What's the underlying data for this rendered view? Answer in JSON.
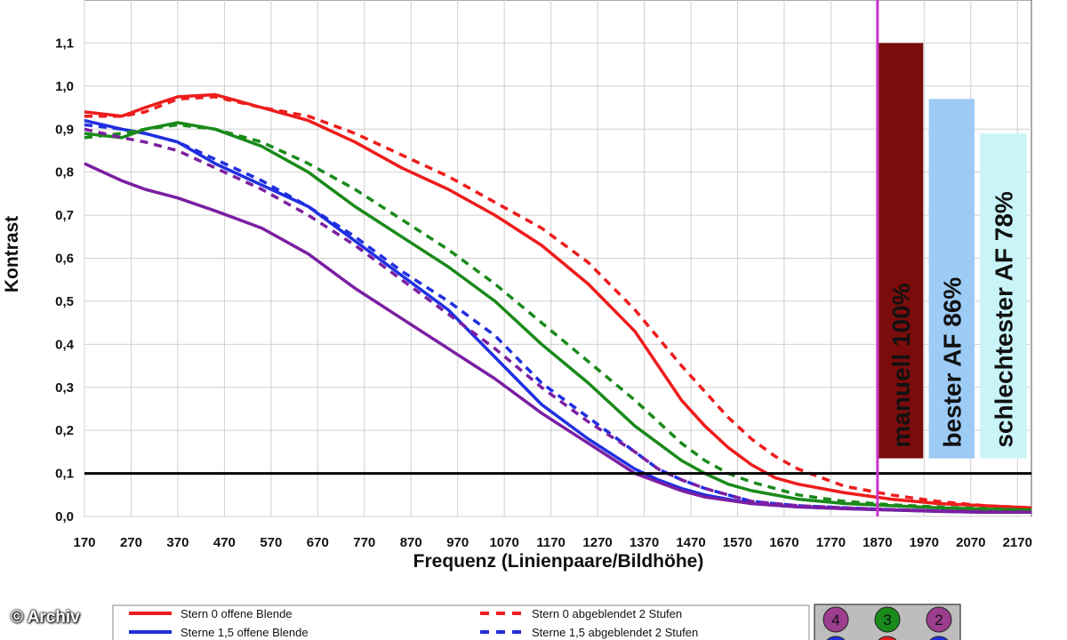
{
  "credit": "© Archiv",
  "chart_data": {
    "type": "line",
    "xlabel": "Frequenz (Linienpaare/Bildhöhe)",
    "ylabel": "Kontrast",
    "xlim": [
      170,
      2200
    ],
    "ylim": [
      0,
      1.2
    ],
    "x_ticks": [
      "170",
      "270",
      "370",
      "470",
      "570",
      "670",
      "770",
      "870",
      "970",
      "1070",
      "1170",
      "1270",
      "1370",
      "1470",
      "1570",
      "1670",
      "1770",
      "1870",
      "1970",
      "2070",
      "2170"
    ],
    "y_ticks": [
      "0,0",
      "0,1",
      "0,2",
      "0,3",
      "0,4",
      "0,5",
      "0,6",
      "0,7",
      "0,8",
      "0,9",
      "1,0",
      "1,1"
    ],
    "reference_line": {
      "y": 0.1,
      "color": "#000000"
    },
    "marker_line": {
      "x": 1870,
      "color": "#cc33cc"
    },
    "bars": [
      {
        "label": "manuell 100%",
        "value": 1.1,
        "color": "#7b0c0c"
      },
      {
        "label": "bester AF 86%",
        "value": 0.97,
        "color": "#9ccbf5"
      },
      {
        "label": "schlechtester AF 78%",
        "value": 0.89,
        "color": "#c9f5f8"
      }
    ],
    "series": [
      {
        "name": "Stern 0 offene Blende",
        "color": "#ee1c1c",
        "dash": false,
        "x": [
          170,
          250,
          300,
          370,
          450,
          550,
          650,
          750,
          850,
          950,
          1050,
          1150,
          1250,
          1350,
          1400,
          1450,
          1500,
          1550,
          1600,
          1650,
          1700,
          1800,
          1900,
          2000,
          2100,
          2200
        ],
        "y": [
          0.94,
          0.93,
          0.95,
          0.975,
          0.98,
          0.95,
          0.92,
          0.87,
          0.81,
          0.76,
          0.7,
          0.63,
          0.54,
          0.43,
          0.35,
          0.27,
          0.21,
          0.16,
          0.12,
          0.09,
          0.075,
          0.055,
          0.04,
          0.03,
          0.025,
          0.02
        ]
      },
      {
        "name": "Stern 0 abgeblendet 2 Stufen",
        "color": "#ee1c1c",
        "dash": true,
        "x": [
          170,
          250,
          300,
          370,
          450,
          550,
          650,
          750,
          850,
          950,
          1050,
          1150,
          1250,
          1350,
          1450,
          1500,
          1550,
          1600,
          1650,
          1700,
          1800,
          1900,
          2000,
          2100,
          2200
        ],
        "y": [
          0.93,
          0.93,
          0.94,
          0.97,
          0.975,
          0.95,
          0.93,
          0.89,
          0.84,
          0.79,
          0.73,
          0.67,
          0.59,
          0.48,
          0.35,
          0.29,
          0.23,
          0.18,
          0.14,
          0.11,
          0.07,
          0.05,
          0.035,
          0.025,
          0.02
        ]
      },
      {
        "name": "Sterne 1,5 offene Blende",
        "color": "#1f2fe0",
        "dash": false,
        "x": [
          170,
          250,
          300,
          370,
          450,
          550,
          650,
          750,
          850,
          950,
          1050,
          1150,
          1250,
          1350,
          1400,
          1450,
          1500,
          1600,
          1700,
          1800,
          1900,
          2000,
          2100,
          2200
        ],
        "y": [
          0.92,
          0.9,
          0.89,
          0.87,
          0.82,
          0.77,
          0.72,
          0.64,
          0.56,
          0.48,
          0.37,
          0.26,
          0.18,
          0.11,
          0.085,
          0.065,
          0.05,
          0.03,
          0.022,
          0.018,
          0.015,
          0.012,
          0.01,
          0.01
        ]
      },
      {
        "name": "Sterne 1,5 abgeblendet 2 Stufen",
        "color": "#1f2fe0",
        "dash": true,
        "x": [
          170,
          250,
          300,
          370,
          450,
          550,
          650,
          750,
          850,
          950,
          1050,
          1150,
          1250,
          1350,
          1400,
          1450,
          1500,
          1600,
          1700,
          1800,
          1900,
          2000,
          2100,
          2200
        ],
        "y": [
          0.91,
          0.9,
          0.89,
          0.87,
          0.83,
          0.78,
          0.72,
          0.65,
          0.57,
          0.5,
          0.42,
          0.31,
          0.23,
          0.15,
          0.11,
          0.085,
          0.065,
          0.035,
          0.025,
          0.02,
          0.016,
          0.013,
          0.011,
          0.01
        ]
      },
      {
        "name": "",
        "color": "#1a8a1a",
        "dash": false,
        "x": [
          170,
          250,
          300,
          370,
          450,
          550,
          650,
          750,
          850,
          950,
          1050,
          1150,
          1250,
          1350,
          1400,
          1450,
          1500,
          1550,
          1600,
          1700,
          1800,
          1900,
          2000,
          2100,
          2200
        ],
        "y": [
          0.89,
          0.88,
          0.9,
          0.915,
          0.9,
          0.86,
          0.8,
          0.72,
          0.65,
          0.58,
          0.5,
          0.4,
          0.31,
          0.21,
          0.17,
          0.13,
          0.1,
          0.075,
          0.06,
          0.04,
          0.03,
          0.025,
          0.02,
          0.017,
          0.015
        ]
      },
      {
        "name": "",
        "color": "#1a8a1a",
        "dash": true,
        "x": [
          170,
          250,
          300,
          370,
          450,
          550,
          650,
          750,
          850,
          950,
          1050,
          1150,
          1250,
          1350,
          1400,
          1450,
          1500,
          1550,
          1600,
          1700,
          1800,
          1900,
          2000,
          2100,
          2200
        ],
        "y": [
          0.88,
          0.89,
          0.9,
          0.91,
          0.9,
          0.87,
          0.82,
          0.76,
          0.69,
          0.62,
          0.54,
          0.45,
          0.36,
          0.27,
          0.22,
          0.17,
          0.13,
          0.1,
          0.08,
          0.05,
          0.035,
          0.027,
          0.022,
          0.018,
          0.015
        ]
      },
      {
        "name": "",
        "color": "#7b1fa2",
        "dash": false,
        "x": [
          170,
          250,
          300,
          370,
          450,
          550,
          650,
          750,
          850,
          950,
          1050,
          1150,
          1250,
          1350,
          1400,
          1450,
          1500,
          1600,
          1700,
          1800,
          1900,
          2000,
          2100,
          2200
        ],
        "y": [
          0.82,
          0.78,
          0.76,
          0.74,
          0.71,
          0.67,
          0.61,
          0.53,
          0.46,
          0.39,
          0.32,
          0.24,
          0.17,
          0.1,
          0.08,
          0.06,
          0.045,
          0.03,
          0.022,
          0.018,
          0.015,
          0.012,
          0.01,
          0.01
        ]
      },
      {
        "name": "",
        "color": "#7b1fa2",
        "dash": true,
        "x": [
          170,
          250,
          300,
          370,
          450,
          550,
          650,
          750,
          850,
          950,
          1050,
          1150,
          1250,
          1350,
          1400,
          1450,
          1500,
          1600,
          1700,
          1800,
          1900,
          2000,
          2100,
          2200
        ],
        "y": [
          0.9,
          0.88,
          0.87,
          0.85,
          0.81,
          0.76,
          0.7,
          0.63,
          0.55,
          0.47,
          0.39,
          0.3,
          0.22,
          0.15,
          0.11,
          0.085,
          0.065,
          0.035,
          0.025,
          0.02,
          0.016,
          0.013,
          0.011,
          0.01
        ]
      }
    ],
    "legend": {
      "entries": [
        {
          "label": "Stern 0 offene Blende",
          "color": "#ee1c1c",
          "dash": false
        },
        {
          "label": "Stern 0 abgeblendet 2 Stufen",
          "color": "#ee1c1c",
          "dash": true
        },
        {
          "label": "Sterne 1,5 offene Blende",
          "color": "#1f2fe0",
          "dash": false
        },
        {
          "label": "Sterne 1,5 abgeblendet 2 Stufen",
          "color": "#1f2fe0",
          "dash": true
        }
      ],
      "badges": [
        {
          "text": "4",
          "color": "#9c3d8e"
        },
        {
          "text": "3",
          "color": "#1a8a1a"
        },
        {
          "text": "2",
          "color": "#9c3d8e"
        },
        {
          "text": "",
          "color": "#1f2fe0"
        },
        {
          "text": "",
          "color": "#ee1c1c"
        },
        {
          "text": "",
          "color": "#1f2fe0"
        }
      ]
    }
  }
}
